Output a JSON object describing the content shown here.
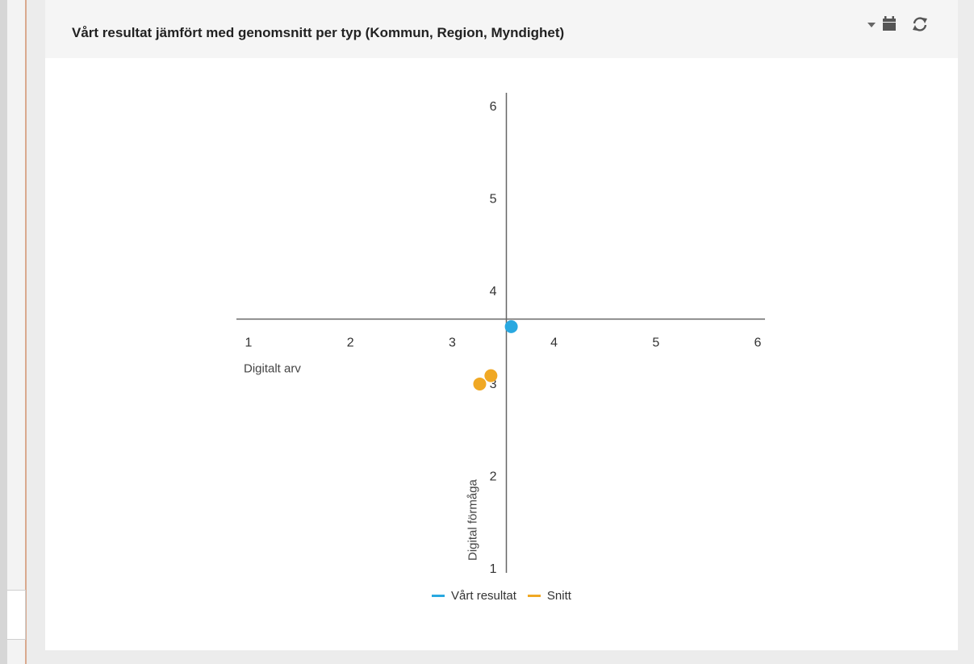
{
  "header": {
    "title": "Vårt resultat jämfört med genomsnitt per typ (Kommun, Region, Myndighet)",
    "icons": [
      "dropdown-caret-icon",
      "calendar-icon",
      "refresh-icon"
    ]
  },
  "colors": {
    "series_primary": "#29a8e0",
    "series_avg": "#f0a824",
    "axis": "#666666"
  },
  "chart_data": {
    "type": "scatter",
    "xlabel": "Digitalt arv",
    "ylabel": "Digital förmåga",
    "xlim": [
      1,
      6
    ],
    "ylim": [
      1,
      6
    ],
    "x_ticks": [
      1,
      2,
      3,
      4,
      5,
      6
    ],
    "y_ticks": [
      1,
      2,
      3,
      4,
      5,
      6
    ],
    "axes_cross_at": [
      3.5,
      3.5
    ],
    "grid": false,
    "legend_position": "bottom",
    "series": [
      {
        "name": "Vårt resultat",
        "color": "#29a8e0",
        "points": [
          [
            3.58,
            3.61
          ]
        ]
      },
      {
        "name": "Snitt",
        "color": "#f0a824",
        "points": [
          [
            3.38,
            3.08
          ],
          [
            3.27,
            2.99
          ]
        ]
      }
    ]
  }
}
